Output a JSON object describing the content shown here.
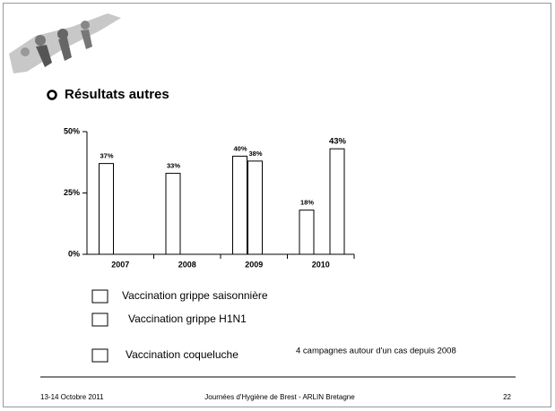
{
  "heading": "Résultats autres",
  "chart_data": {
    "type": "bar",
    "categories": [
      "2007",
      "2008",
      "2009",
      "2010"
    ],
    "series": [
      {
        "name": "Vaccination grippe saisonnière",
        "color": "#ffffff",
        "values": [
          37,
          33,
          40,
          18
        ],
        "value_labels": [
          "37%",
          "33%",
          "40%",
          "18%"
        ]
      },
      {
        "name": "Vaccination grippe H1N1",
        "color": "#ffffff",
        "values": [
          null,
          null,
          38,
          null
        ],
        "value_labels": [
          null,
          null,
          "38%",
          null
        ]
      },
      {
        "name": "Vaccination coqueluche",
        "color": "#ffffff",
        "values": [
          null,
          null,
          null,
          43
        ],
        "value_labels": [
          null,
          null,
          null,
          "43%"
        ]
      }
    ],
    "ylim": [
      0,
      50
    ],
    "yticks": [
      {
        "value": 0,
        "label": "0%"
      },
      {
        "value": 25,
        "label": "25%"
      },
      {
        "value": 50,
        "label": "50%"
      }
    ],
    "annotation": "4 campagnes autour d'un cas depuis 2008"
  },
  "footer": {
    "date": "13-14 Octobre 2011",
    "event": "Journées d'Hygiène de Brest - ARLIN Bretagne",
    "page": "22"
  }
}
